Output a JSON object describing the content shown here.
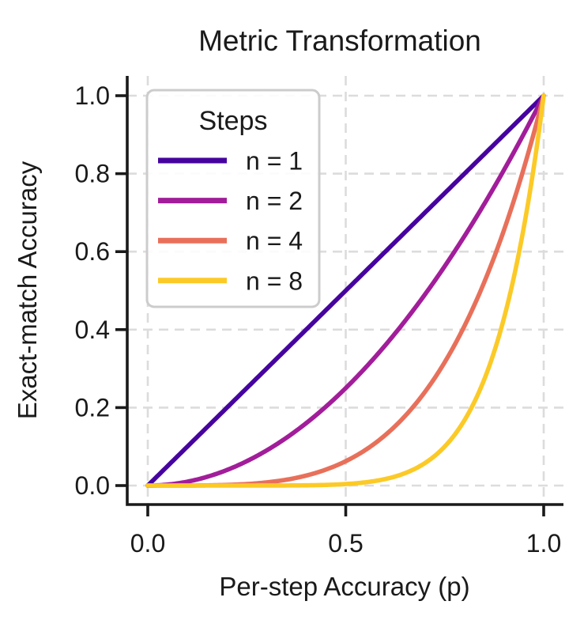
{
  "chart_data": {
    "type": "line",
    "title": "Metric Transformation",
    "xlabel": "Per-step Accuracy (p)",
    "ylabel": "Exact-match Accuracy",
    "xlim": [
      0,
      1
    ],
    "ylim": [
      0,
      1
    ],
    "xticks": [
      0,
      0.5,
      1
    ],
    "xtick_labels": [
      "0.0",
      "0.5",
      "1.0"
    ],
    "yticks": [
      0,
      0.2,
      0.4,
      0.6,
      0.8,
      1
    ],
    "ytick_labels": [
      "0.0",
      "0.2",
      "0.4",
      "0.6",
      "0.8",
      "1.0"
    ],
    "grid": {
      "visible": true,
      "style": "dashed",
      "color": "#dcdcdc"
    },
    "axis_color": "#1a1a1a",
    "function": "y = p^n",
    "legend": {
      "title": "Steps",
      "position": "upper-left"
    },
    "p_samples": [
      0,
      0.1,
      0.2,
      0.3,
      0.4,
      0.5,
      0.6,
      0.7,
      0.8,
      0.9,
      1
    ],
    "series": [
      {
        "name": "n = 1",
        "exponent": 1,
        "color": "#46039f",
        "values": [
          0,
          0.1,
          0.2,
          0.3,
          0.4,
          0.5,
          0.6,
          0.7,
          0.8,
          0.9,
          1
        ]
      },
      {
        "name": "n = 2",
        "exponent": 2,
        "color": "#a21d9a",
        "values": [
          0,
          0.01,
          0.04,
          0.09,
          0.16,
          0.25,
          0.36,
          0.49,
          0.64,
          0.81,
          1
        ]
      },
      {
        "name": "n = 4",
        "exponent": 4,
        "color": "#e8705a",
        "values": [
          0,
          0.0001,
          0.0016,
          0.0081,
          0.0256,
          0.0625,
          0.1296,
          0.2401,
          0.4096,
          0.6561,
          1
        ]
      },
      {
        "name": "n = 8",
        "exponent": 8,
        "color": "#fcca27",
        "values": [
          0,
          0,
          0,
          0.0001,
          0.0007,
          0.0039,
          0.0168,
          0.0576,
          0.1678,
          0.4305,
          1
        ]
      }
    ]
  }
}
